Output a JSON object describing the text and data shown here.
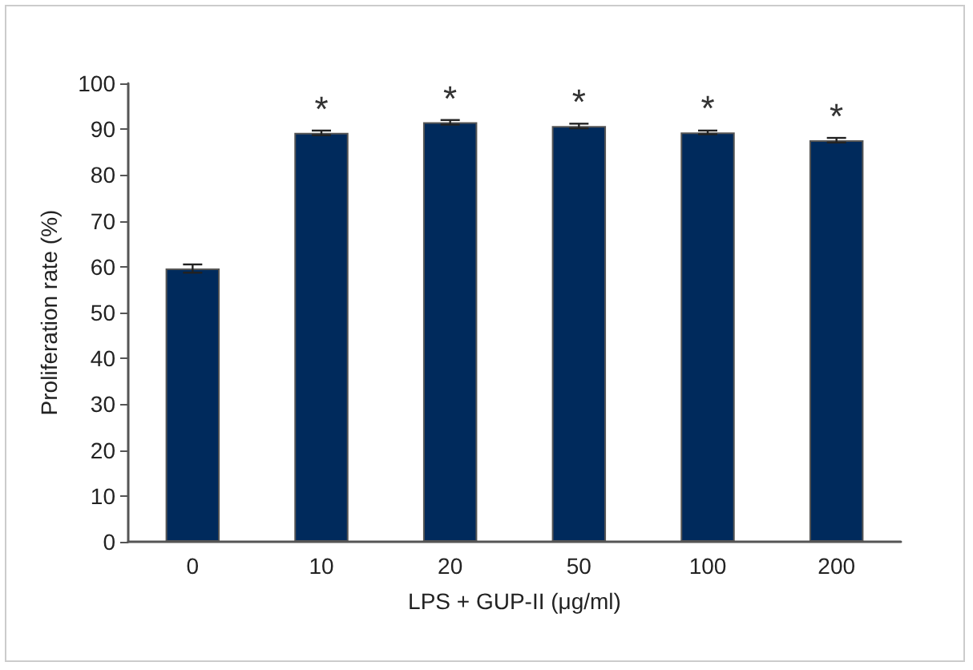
{
  "chart_data": {
    "type": "bar",
    "xlabel": "LPS + GUP-II (μg/ml)",
    "ylabel": "Proliferation rate (%)",
    "categories": [
      "0",
      "10",
      "20",
      "50",
      "100",
      "200"
    ],
    "values": [
      59.6,
      89.2,
      91.5,
      90.7,
      89.3,
      87.6
    ],
    "errors": [
      0.9,
      0.5,
      0.5,
      0.5,
      0.4,
      0.5
    ],
    "value_labels": [
      null,
      "*",
      "*",
      "*",
      "*",
      "*"
    ],
    "color": "#002a5c",
    "ylim": [
      0,
      100
    ],
    "yticks": [
      0,
      10,
      20,
      30,
      40,
      50,
      60,
      70,
      80,
      90,
      100
    ],
    "grid": false
  }
}
